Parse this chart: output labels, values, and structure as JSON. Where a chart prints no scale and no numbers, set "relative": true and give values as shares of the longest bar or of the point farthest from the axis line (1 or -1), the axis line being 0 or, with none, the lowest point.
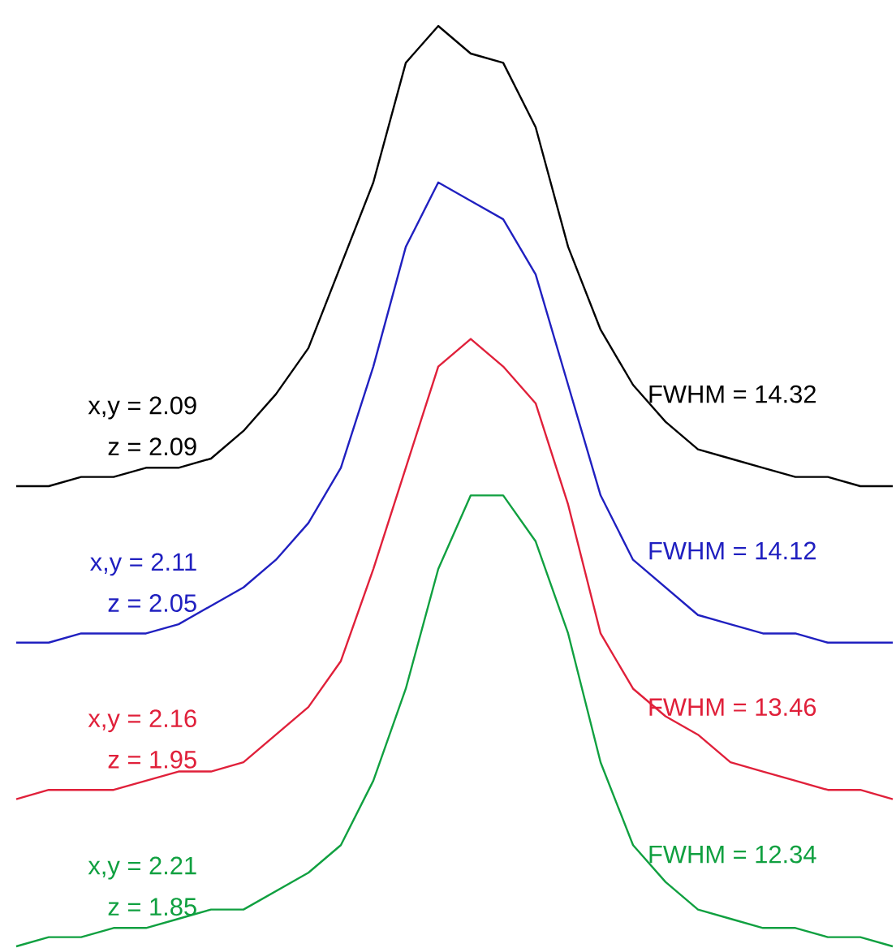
{
  "chart_data": {
    "type": "line",
    "relative": true,
    "categories": [
      null,
      null,
      null,
      null,
      null,
      null,
      null,
      null,
      null,
      null,
      null,
      null,
      null,
      null,
      null,
      null,
      null,
      null,
      null,
      null,
      null,
      null,
      null,
      null,
      null,
      null,
      null,
      null
    ],
    "series": [
      {
        "color": "#000000",
        "values": [
          0.5,
          0.5,
          0.51,
          0.51,
          0.52,
          0.52,
          0.53,
          0.56,
          0.6,
          0.65,
          0.74,
          0.83,
          0.96,
          1.0,
          0.97,
          0.96,
          0.89,
          0.76,
          0.67,
          0.61,
          0.57,
          0.54,
          0.53,
          0.52,
          0.51,
          0.51,
          0.5,
          0.5
        ]
      },
      {
        "color": "#2020c0",
        "values": [
          0.33,
          0.33,
          0.34,
          0.34,
          0.34,
          0.35,
          0.37,
          0.39,
          0.42,
          0.46,
          0.52,
          0.63,
          0.76,
          0.83,
          0.81,
          0.79,
          0.73,
          0.61,
          0.49,
          0.42,
          0.39,
          0.36,
          0.35,
          0.34,
          0.34,
          0.33,
          0.33,
          0.33
        ]
      },
      {
        "color": "#e0203a",
        "values": [
          0.16,
          0.17,
          0.17,
          0.17,
          0.18,
          0.19,
          0.19,
          0.2,
          0.23,
          0.26,
          0.31,
          0.41,
          0.52,
          0.63,
          0.66,
          0.63,
          0.59,
          0.48,
          0.34,
          0.28,
          0.25,
          0.23,
          0.2,
          0.19,
          0.18,
          0.17,
          0.17,
          0.16
        ]
      },
      {
        "color": "#10a040",
        "values": [
          0.0,
          0.01,
          0.01,
          0.02,
          0.02,
          0.03,
          0.04,
          0.04,
          0.06,
          0.08,
          0.11,
          0.18,
          0.28,
          0.41,
          0.49,
          0.49,
          0.44,
          0.34,
          0.2,
          0.11,
          0.07,
          0.04,
          0.03,
          0.02,
          0.02,
          0.01,
          0.01,
          0.0
        ]
      }
    ],
    "annotations": [
      "x,y = 2.09",
      "z = 2.09",
      "FWHM = 14.32",
      "x,y = 2.11",
      "z = 2.05",
      "FWHM = 14.12",
      "x,y = 2.16",
      "z = 1.95",
      "FWHM = 13.46",
      "x,y = 2.21",
      "z = 1.85",
      "FWHM = 12.34"
    ]
  }
}
